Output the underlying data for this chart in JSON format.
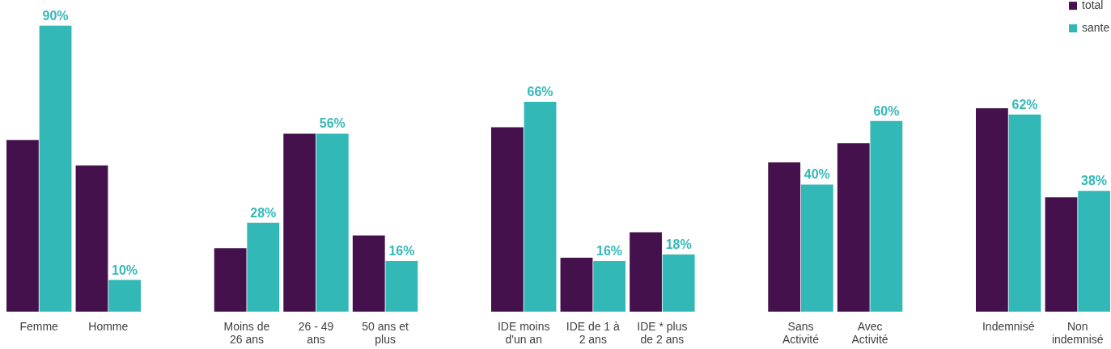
{
  "chart_data": {
    "type": "bar",
    "categories": [
      "Femme",
      "Homme",
      null,
      "Moins de 26 ans",
      "26 - 49 ans",
      "50 ans et plus",
      null,
      "IDE moins d'un an",
      "IDE de 1 à 2 ans",
      "IDE * plus de 2 ans",
      null,
      "Sans Activité",
      "Avec Activité",
      null,
      "Indemnisé",
      "Non indemnisé"
    ],
    "series": [
      {
        "name": "total",
        "color": "#45114c",
        "values": [
          54,
          46,
          null,
          20,
          56,
          24,
          null,
          58,
          17,
          25,
          null,
          47,
          53,
          null,
          64,
          36
        ]
      },
      {
        "name": "sante",
        "color": "#33b8b8",
        "values": [
          90,
          10,
          null,
          28,
          56,
          16,
          null,
          66,
          16,
          18,
          null,
          40,
          60,
          null,
          62,
          38
        ],
        "value_labels": [
          "90%",
          "10%",
          null,
          "28%",
          "56%",
          "16%",
          null,
          "66%",
          "16%",
          "18%",
          null,
          "40%",
          "60%",
          null,
          "62%",
          "38%"
        ]
      }
    ],
    "ylim": [
      0,
      98
    ],
    "tick_labels": "x",
    "grid": false,
    "legend": "top right"
  }
}
